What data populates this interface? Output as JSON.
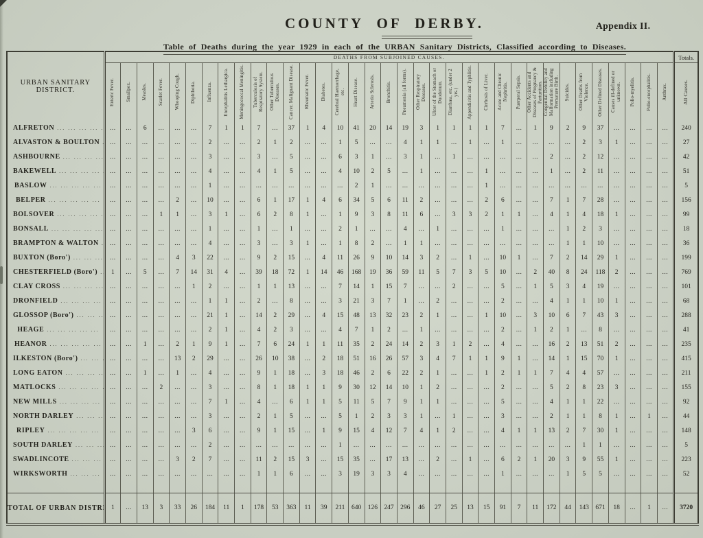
{
  "page": {
    "title": "COUNTY OF DERBY.",
    "appendix": "Appendix II.",
    "subtitle": "Table of Deaths during the year 1929 in each of the URBAN Sanitary Districts, Classified according to Diseases."
  },
  "table": {
    "corner_header": "URBAN SANITARY DISTRICT.",
    "banner": "DEATHS FROM SUBJOINED CAUSES.",
    "totals_banner": "Totals.",
    "empty_cell": "...",
    "columns": [
      "Enteric Fever.",
      "Smallpox.",
      "Measles.",
      "Scarlet Fever.",
      "Whooping Cough.",
      "Diphtheria.",
      "Influenza.",
      "Encephalitis Lethargica.",
      "Meningococcal Meningitis.",
      "Tuberculosis of Respiratory System.",
      "Other Tuberculous Diseases.",
      "Cancer. Malignant Disease.",
      "Rheumatic Fever.",
      "Diabetes.",
      "Cerebral Haemorrhage, etc.",
      "Heart Disease.",
      "Arterio Sclerosis.",
      "Bronchitis.",
      "Pneumonia (all forms).",
      "Other Respiratory Diseases.",
      "Ulcer of the Stomach or Duodenum.",
      "Diarrhœa, etc. (under 2 yrs.)",
      "Appendicitis and Typhlitis.",
      "Cirrhosis of Liver.",
      "Acute and Chronic Nephritis.",
      "Puerperal Sepsis.",
      "Other Accidents and Diseases of Pregnancy & Parturition.",
      "Congenital Debility and Malformation including Premature Birth.",
      "Suicides.",
      "Other Deaths from Violence.",
      "Other Defined Diseases.",
      "Causes ill-defined or unknown.",
      "Polio-myelitis.",
      "Polio-encephalitis.",
      "Anthrax.",
      "All Causes."
    ],
    "rows": [
      {
        "district": "ALFRETON",
        "values": [
          null,
          null,
          6,
          null,
          null,
          null,
          7,
          1,
          1,
          7,
          null,
          37,
          1,
          4,
          10,
          41,
          20,
          14,
          19,
          3,
          1,
          1,
          1,
          1,
          7,
          null,
          1,
          9,
          2,
          9,
          37,
          null,
          null,
          null,
          null,
          240
        ]
      },
      {
        "district": "ALVASTON & BOULTON",
        "values": [
          null,
          null,
          null,
          null,
          null,
          null,
          2,
          null,
          null,
          2,
          1,
          2,
          null,
          null,
          1,
          5,
          null,
          null,
          4,
          1,
          1,
          null,
          1,
          null,
          1,
          null,
          null,
          null,
          null,
          2,
          3,
          1,
          null,
          null,
          null,
          27
        ]
      },
      {
        "district": "ASHBOURNE",
        "values": [
          null,
          null,
          null,
          null,
          null,
          null,
          3,
          null,
          null,
          3,
          null,
          5,
          null,
          null,
          6,
          3,
          1,
          null,
          3,
          1,
          null,
          1,
          null,
          null,
          null,
          null,
          null,
          2,
          null,
          2,
          12,
          null,
          null,
          null,
          null,
          42
        ]
      },
      {
        "district": "BAKEWELL",
        "values": [
          null,
          null,
          null,
          null,
          null,
          null,
          4,
          null,
          null,
          4,
          1,
          5,
          null,
          null,
          4,
          10,
          2,
          5,
          null,
          1,
          null,
          null,
          null,
          1,
          null,
          null,
          null,
          1,
          null,
          2,
          11,
          null,
          null,
          null,
          null,
          51
        ]
      },
      {
        "district": "BASLOW",
        "values": [
          null,
          null,
          null,
          null,
          null,
          null,
          1,
          null,
          null,
          null,
          null,
          null,
          null,
          null,
          null,
          2,
          1,
          null,
          null,
          null,
          null,
          null,
          null,
          1,
          null,
          null,
          null,
          null,
          null,
          null,
          null,
          null,
          null,
          null,
          null,
          5
        ]
      },
      {
        "district": "BELPER",
        "values": [
          null,
          null,
          null,
          null,
          2,
          null,
          10,
          null,
          null,
          6,
          1,
          17,
          1,
          4,
          6,
          34,
          5,
          6,
          11,
          2,
          null,
          null,
          null,
          2,
          6,
          null,
          null,
          7,
          1,
          7,
          28,
          null,
          null,
          null,
          null,
          156
        ]
      },
      {
        "district": "BOLSOVER",
        "values": [
          null,
          null,
          null,
          1,
          1,
          null,
          3,
          1,
          null,
          6,
          2,
          8,
          1,
          null,
          1,
          9,
          3,
          8,
          11,
          6,
          null,
          3,
          3,
          2,
          1,
          1,
          null,
          4,
          1,
          4,
          18,
          1,
          null,
          null,
          null,
          99
        ]
      },
      {
        "district": "BONSALL",
        "values": [
          null,
          null,
          null,
          null,
          null,
          null,
          1,
          null,
          null,
          1,
          null,
          1,
          null,
          null,
          2,
          1,
          null,
          null,
          4,
          null,
          1,
          null,
          null,
          null,
          1,
          null,
          null,
          null,
          1,
          2,
          3,
          null,
          null,
          null,
          null,
          18
        ]
      },
      {
        "district": "BRAMPTON & WALTON",
        "values": [
          null,
          null,
          null,
          null,
          null,
          null,
          4,
          null,
          null,
          3,
          null,
          3,
          1,
          null,
          1,
          8,
          2,
          null,
          1,
          1,
          null,
          null,
          null,
          null,
          null,
          null,
          null,
          null,
          1,
          1,
          10,
          null,
          null,
          null,
          null,
          36
        ]
      },
      {
        "district": "BUXTON (Boro')",
        "values": [
          null,
          null,
          null,
          null,
          4,
          3,
          22,
          null,
          null,
          9,
          2,
          15,
          null,
          4,
          11,
          26,
          9,
          10,
          14,
          3,
          2,
          null,
          1,
          null,
          10,
          1,
          null,
          7,
          2,
          14,
          29,
          1,
          null,
          null,
          null,
          199
        ]
      },
      {
        "district": "CHESTERFIELD (Boro')",
        "values": [
          1,
          null,
          5,
          null,
          7,
          14,
          31,
          4,
          null,
          39,
          18,
          72,
          1,
          14,
          46,
          168,
          19,
          36,
          59,
          11,
          5,
          7,
          3,
          5,
          10,
          null,
          2,
          40,
          8,
          24,
          118,
          2,
          null,
          null,
          null,
          769
        ]
      },
      {
        "district": "CLAY CROSS",
        "values": [
          null,
          null,
          null,
          null,
          null,
          1,
          2,
          null,
          null,
          1,
          1,
          13,
          null,
          null,
          7,
          14,
          1,
          15,
          7,
          null,
          null,
          2,
          null,
          null,
          5,
          null,
          1,
          5,
          3,
          4,
          19,
          null,
          null,
          null,
          null,
          101
        ]
      },
      {
        "district": "DRONFIELD",
        "values": [
          null,
          null,
          null,
          null,
          null,
          null,
          1,
          1,
          null,
          2,
          null,
          8,
          null,
          null,
          3,
          21,
          3,
          7,
          1,
          null,
          2,
          null,
          null,
          null,
          2,
          null,
          null,
          4,
          1,
          1,
          10,
          1,
          null,
          null,
          null,
          68
        ]
      },
      {
        "district": "GLOSSOP (Boro')",
        "values": [
          null,
          null,
          null,
          null,
          null,
          null,
          21,
          1,
          null,
          14,
          2,
          29,
          null,
          4,
          15,
          48,
          13,
          32,
          23,
          2,
          1,
          null,
          null,
          1,
          10,
          null,
          3,
          10,
          6,
          7,
          43,
          3,
          null,
          null,
          null,
          288
        ]
      },
      {
        "district": "HEAGE",
        "values": [
          null,
          null,
          null,
          null,
          null,
          null,
          2,
          1,
          null,
          4,
          2,
          3,
          null,
          null,
          4,
          7,
          1,
          2,
          null,
          1,
          null,
          null,
          null,
          null,
          2,
          null,
          1,
          2,
          1,
          null,
          8,
          null,
          null,
          null,
          null,
          41
        ]
      },
      {
        "district": "HEANOR",
        "values": [
          null,
          null,
          1,
          null,
          2,
          1,
          9,
          1,
          null,
          7,
          6,
          24,
          1,
          1,
          11,
          35,
          2,
          24,
          14,
          2,
          3,
          1,
          2,
          null,
          4,
          null,
          null,
          16,
          2,
          13,
          51,
          2,
          null,
          null,
          null,
          235
        ]
      },
      {
        "district": "ILKESTON (Boro')",
        "values": [
          null,
          null,
          null,
          null,
          13,
          2,
          29,
          null,
          null,
          26,
          10,
          38,
          null,
          2,
          18,
          51,
          16,
          26,
          57,
          3,
          4,
          7,
          1,
          1,
          9,
          1,
          null,
          14,
          1,
          15,
          70,
          1,
          null,
          null,
          null,
          415
        ]
      },
      {
        "district": "LONG EATON",
        "values": [
          null,
          null,
          1,
          null,
          1,
          null,
          4,
          null,
          null,
          9,
          1,
          18,
          null,
          3,
          18,
          46,
          2,
          6,
          22,
          2,
          1,
          null,
          null,
          1,
          2,
          1,
          1,
          7,
          4,
          4,
          57,
          null,
          null,
          null,
          null,
          211
        ]
      },
      {
        "district": "MATLOCKS",
        "values": [
          null,
          null,
          null,
          2,
          null,
          null,
          3,
          null,
          null,
          8,
          1,
          18,
          1,
          1,
          9,
          30,
          12,
          14,
          10,
          1,
          2,
          null,
          null,
          null,
          2,
          null,
          null,
          5,
          2,
          8,
          23,
          3,
          null,
          null,
          null,
          155
        ]
      },
      {
        "district": "NEW MILLS",
        "values": [
          null,
          null,
          null,
          null,
          null,
          null,
          7,
          1,
          null,
          4,
          null,
          6,
          1,
          1,
          5,
          11,
          5,
          7,
          9,
          1,
          1,
          null,
          null,
          null,
          5,
          null,
          null,
          4,
          1,
          1,
          22,
          null,
          null,
          null,
          null,
          92
        ]
      },
      {
        "district": "NORTH DARLEY",
        "values": [
          null,
          null,
          null,
          null,
          null,
          null,
          3,
          null,
          null,
          2,
          1,
          5,
          null,
          null,
          5,
          1,
          2,
          3,
          3,
          1,
          null,
          1,
          null,
          null,
          3,
          null,
          null,
          2,
          1,
          1,
          8,
          1,
          null,
          1,
          null,
          44
        ]
      },
      {
        "district": "RIPLEY",
        "values": [
          null,
          null,
          null,
          null,
          null,
          3,
          6,
          null,
          null,
          9,
          1,
          15,
          null,
          1,
          9,
          15,
          4,
          12,
          7,
          4,
          1,
          2,
          null,
          null,
          4,
          1,
          1,
          13,
          2,
          7,
          30,
          1,
          null,
          null,
          null,
          148
        ]
      },
      {
        "district": "SOUTH DARLEY",
        "values": [
          null,
          null,
          null,
          null,
          null,
          null,
          2,
          null,
          null,
          null,
          null,
          null,
          null,
          null,
          1,
          null,
          null,
          null,
          null,
          null,
          null,
          null,
          null,
          null,
          null,
          null,
          null,
          null,
          null,
          1,
          1,
          null,
          null,
          null,
          null,
          5
        ]
      },
      {
        "district": "SWADLINCOTE",
        "values": [
          null,
          null,
          null,
          null,
          3,
          2,
          7,
          null,
          null,
          11,
          2,
          15,
          3,
          null,
          15,
          35,
          null,
          17,
          13,
          null,
          2,
          null,
          1,
          null,
          6,
          2,
          1,
          20,
          3,
          9,
          55,
          1,
          null,
          null,
          null,
          223
        ]
      },
      {
        "district": "WIRKSWORTH",
        "values": [
          null,
          null,
          null,
          null,
          null,
          null,
          null,
          null,
          null,
          1,
          1,
          6,
          null,
          null,
          3,
          19,
          3,
          3,
          4,
          null,
          null,
          null,
          null,
          null,
          1,
          null,
          null,
          null,
          1,
          5,
          5,
          null,
          null,
          null,
          null,
          52
        ]
      }
    ],
    "total_row": {
      "district": "TOTAL OF URBAN DISTRICTS",
      "values": [
        1,
        null,
        13,
        3,
        33,
        26,
        184,
        11,
        1,
        178,
        53,
        363,
        11,
        39,
        211,
        640,
        126,
        247,
        296,
        46,
        27,
        25,
        13,
        15,
        91,
        7,
        11,
        172,
        44,
        143,
        671,
        18,
        null,
        1,
        null,
        3720
      ]
    }
  }
}
